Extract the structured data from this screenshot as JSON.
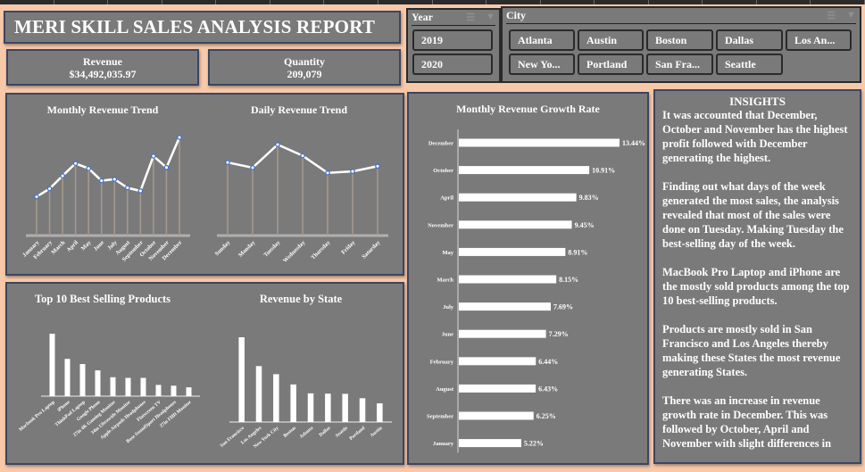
{
  "report": {
    "title": "MERI SKILL SALES ANALYSIS REPORT"
  },
  "kpis": {
    "revenue_label": "Revenue",
    "revenue_value": "$34,492,035.97",
    "quantity_label": "Quantity",
    "quantity_value": "209,079"
  },
  "slicers": {
    "year": {
      "label": "Year",
      "items": [
        "2019",
        "2020"
      ]
    },
    "city": {
      "label": "City",
      "items": [
        "Atlanta",
        "Austin",
        "Boston",
        "Dallas",
        "Los An...",
        "New Yo...",
        "Portland",
        "San Fra...",
        "Seattle"
      ]
    },
    "icons": [
      "multi-select-icon",
      "clear-filter-icon"
    ]
  },
  "colors": {
    "background": "#f8c9a9",
    "panel": "#7a7a7a",
    "panel_border": "#3b4661",
    "series_line": "#ffffff",
    "marker": "#4472c4",
    "drop_line": "#a89a8e"
  },
  "insights": {
    "title": "INSIGHTS",
    "paragraphs": [
      "It was accounted that December, October and November has the highest profit followed with December generating the highest.",
      "Finding out what days of the week generated the most sales, the analysis revealed that most of the sales were done on Tuesday. Making Tuesday the best-selling day of the week.",
      "MacBook Pro Laptop and iPhone are the mostly sold products among the top 10 best-selling products.",
      "Products are mostly sold in San Francisco and Los Angeles thereby making these States the most revenue generating States.",
      "There was an increase in revenue growth rate in December. This was followed by October, April and November with slight differences in"
    ]
  },
  "chart_data": [
    {
      "type": "line",
      "title": "Monthly Revenue Trend",
      "categories": [
        "January",
        "February",
        "March",
        "April",
        "May",
        "June",
        "July",
        "August",
        "September",
        "October",
        "November",
        "December"
      ],
      "values": [
        1822257,
        2202022,
        2807100,
        3390670,
        3152607,
        2577802,
        2647776,
        2244468,
        2097560,
        3736727,
        3199603,
        4613443
      ],
      "xlabel": "",
      "ylabel": "",
      "grid": false,
      "legend": "none"
    },
    {
      "type": "line",
      "title": "Daily Revenue Trend",
      "categories": [
        "Sunday",
        "Monday",
        "Tuesday",
        "Wednesday",
        "Thursday",
        "Friday",
        "Saturday"
      ],
      "values": [
        4900000,
        4550000,
        6100000,
        5350000,
        4200000,
        4300000,
        4650000
      ],
      "xlabel": "",
      "ylabel": "",
      "grid": false,
      "legend": "none"
    },
    {
      "type": "bar",
      "title": "Top 10 Best Selling Products",
      "categories": [
        "Macbook Pro Laptop",
        "iPhone",
        "ThinkPad Laptop",
        "Google Phone",
        "27in 4K Gaming Monitor",
        "34in Ultrawide Monitor",
        "Apple Airpods Headphones",
        "Flatscreen TV",
        "Bose SoundSport Headphones",
        "27in FHD Monitor"
      ],
      "values": [
        8037600,
        4794300,
        4129959,
        3319200,
        2435098,
        2355558,
        2349150,
        1445700,
        1345565,
        1132425
      ],
      "xlabel": "",
      "ylabel": "",
      "grid": false,
      "legend": "none"
    },
    {
      "type": "bar",
      "title": "Revenue by State",
      "categories": [
        "San Francisco",
        "Los Angeles",
        "New York City",
        "Boston",
        "Atlanta",
        "Dallas",
        "Seattle",
        "Portland",
        "Austin"
      ],
      "values": [
        8262204,
        5452571,
        4664317,
        3661642,
        2795499,
        2767976,
        2747755,
        2320491,
        1819582
      ],
      "xlabel": "",
      "ylabel": "",
      "grid": false,
      "legend": "none"
    },
    {
      "type": "bar",
      "orientation": "horizontal",
      "title": "Monthly Revenue Growth Rate",
      "categories": [
        "December",
        "October",
        "April",
        "November",
        "May",
        "March",
        "July",
        "June",
        "February",
        "August",
        "September",
        "January"
      ],
      "values": [
        13.44,
        10.91,
        9.83,
        9.45,
        8.91,
        8.15,
        7.69,
        7.29,
        6.44,
        6.43,
        6.25,
        5.22
      ],
      "labels": [
        "13.44%",
        "10.91%",
        "9.83%",
        "9.45%",
        "8.91%",
        "8.15%",
        "7.69%",
        "7.29%",
        "6.44%",
        "6.43%",
        "6.25%",
        "5.22%"
      ],
      "xlabel": "",
      "ylabel": "",
      "grid": false,
      "legend": "none"
    }
  ]
}
